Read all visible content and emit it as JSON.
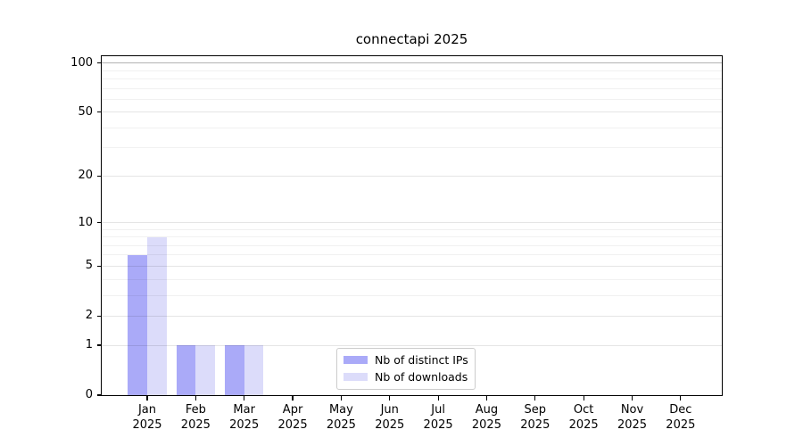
{
  "title": "connectapi 2025",
  "chart_data": {
    "type": "bar",
    "title": "connectapi 2025",
    "categories": [
      "Jan 2025",
      "Feb 2025",
      "Mar 2025",
      "Apr 2025",
      "May 2025",
      "Jun 2025",
      "Jul 2025",
      "Aug 2025",
      "Sep 2025",
      "Oct 2025",
      "Nov 2025",
      "Dec 2025"
    ],
    "series": [
      {
        "name": "Nb of distinct IPs",
        "color": "#aaaaf8",
        "values": [
          6,
          1,
          1,
          0,
          0,
          0,
          0,
          0,
          0,
          0,
          0,
          0
        ]
      },
      {
        "name": "Nb of downloads",
        "color": "#dcdcfa",
        "values": [
          8,
          1,
          1,
          0,
          0,
          0,
          0,
          0,
          0,
          0,
          0,
          0
        ]
      }
    ],
    "xlabel": "",
    "ylabel": "",
    "y_scale": "log10(value+1)",
    "y_ticks": [
      0,
      1,
      2,
      5,
      10,
      20,
      50,
      100
    ],
    "y_minor_gridlines": [
      3,
      4,
      6,
      7,
      8,
      9,
      30,
      40,
      60,
      70,
      80,
      90
    ],
    "ylim": [
      0,
      110
    ],
    "grid": true,
    "legend_position": "inside-bottom-center"
  },
  "legend": {
    "items": [
      "Nb of distinct IPs",
      "Nb of downloads"
    ]
  },
  "colors": {
    "bar_distinct_ips": "#aaaaf8",
    "bar_downloads": "#dcdcfa",
    "grid_minor": "rgba(0,0,0,0.055)",
    "grid_major": "rgba(0,0,0,0.10)",
    "grid_hundred": "#b3b3b3",
    "axis": "#000000",
    "legend_border": "#cccccc",
    "background": "#ffffff"
  }
}
